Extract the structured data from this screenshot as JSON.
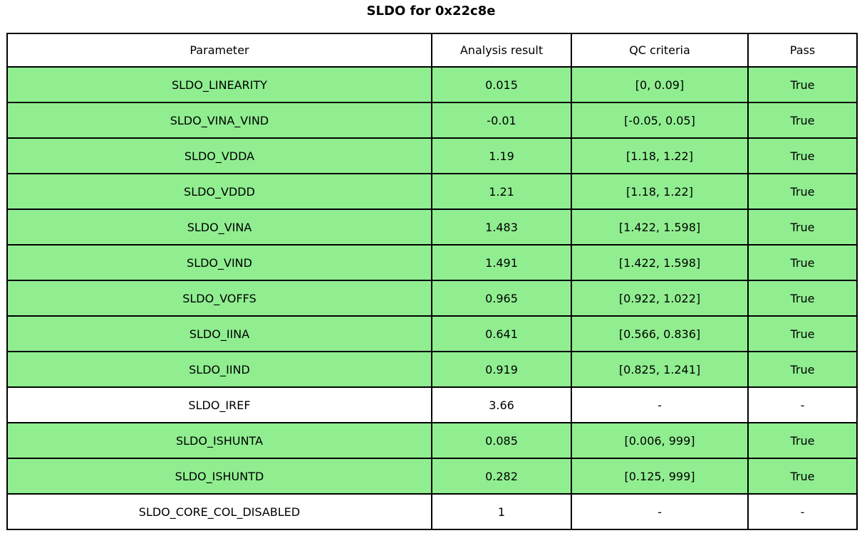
{
  "chart_data": {
    "type": "table",
    "title": "SLDO for 0x22c8e",
    "columns": [
      "Parameter",
      "Analysis result",
      "QC criteria",
      "Pass"
    ],
    "rows": [
      {
        "parameter": "SLDO_LINEARITY",
        "result": "0.015",
        "criteria": "[0, 0.09]",
        "pass": "True",
        "highlight": true
      },
      {
        "parameter": "SLDO_VINA_VIND",
        "result": "-0.01",
        "criteria": "[-0.05, 0.05]",
        "pass": "True",
        "highlight": true
      },
      {
        "parameter": "SLDO_VDDA",
        "result": "1.19",
        "criteria": "[1.18, 1.22]",
        "pass": "True",
        "highlight": true
      },
      {
        "parameter": "SLDO_VDDD",
        "result": "1.21",
        "criteria": "[1.18, 1.22]",
        "pass": "True",
        "highlight": true
      },
      {
        "parameter": "SLDO_VINA",
        "result": "1.483",
        "criteria": "[1.422, 1.598]",
        "pass": "True",
        "highlight": true
      },
      {
        "parameter": "SLDO_VIND",
        "result": "1.491",
        "criteria": "[1.422, 1.598]",
        "pass": "True",
        "highlight": true
      },
      {
        "parameter": "SLDO_VOFFS",
        "result": "0.965",
        "criteria": "[0.922, 1.022]",
        "pass": "True",
        "highlight": true
      },
      {
        "parameter": "SLDO_IINA",
        "result": "0.641",
        "criteria": "[0.566, 0.836]",
        "pass": "True",
        "highlight": true
      },
      {
        "parameter": "SLDO_IIND",
        "result": "0.919",
        "criteria": "[0.825, 1.241]",
        "pass": "True",
        "highlight": true
      },
      {
        "parameter": "SLDO_IREF",
        "result": "3.66",
        "criteria": "-",
        "pass": "-",
        "highlight": false
      },
      {
        "parameter": "SLDO_ISHUNTA",
        "result": "0.085",
        "criteria": "[0.006, 999]",
        "pass": "True",
        "highlight": true
      },
      {
        "parameter": "SLDO_ISHUNTD",
        "result": "0.282",
        "criteria": "[0.125, 999]",
        "pass": "True",
        "highlight": true
      },
      {
        "parameter": "SLDO_CORE_COL_DISABLED",
        "result": "1",
        "criteria": "-",
        "pass": "-",
        "highlight": false
      }
    ],
    "layout": {
      "legend": "none",
      "grid": "full-cell-borders",
      "title_position": "top-center",
      "title_bold": true
    },
    "colors": {
      "pass_row_bg": "#90EE90",
      "neutral_row_bg": "#FFFFFF",
      "border": "#000000",
      "text": "#000000"
    }
  }
}
